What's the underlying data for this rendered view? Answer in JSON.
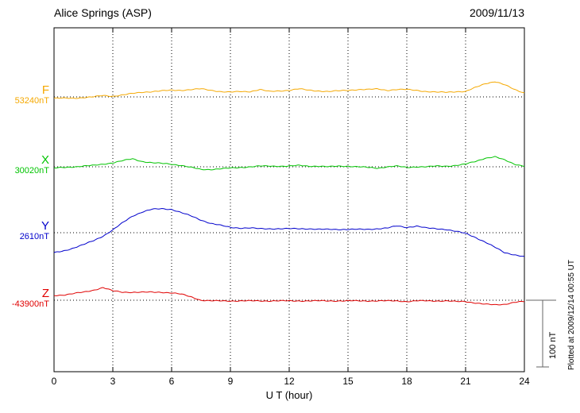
{
  "header": {
    "station": "Alice Springs (ASP)",
    "date": "2009/11/13"
  },
  "axis": {
    "xlabel": "U T (hour)",
    "tick_labels": [
      "0",
      "3",
      "6",
      "9",
      "12",
      "15",
      "18",
      "21",
      "24"
    ]
  },
  "scale_bar": {
    "label": "100 nT",
    "amount_nT": 100
  },
  "side_note": "Plotted at 2009/12/14 00:55 UT",
  "chart_data": {
    "type": "line",
    "title": "Alice Springs (ASP) magnetogram 2009/11/13",
    "xlabel": "U T (hour)",
    "x_range": [
      0,
      24
    ],
    "x_step_hours": 0.5,
    "grid": "dotted vertical lines every 3 h; dotted horizontal baseline per component",
    "legend_position": "left margin, one colored label per component",
    "y_scale": "deviation from component baseline in nT; scale bar = 100 nT",
    "series": [
      {
        "name": "F",
        "baseline_label": "53240nT",
        "baseline_nT": 53240,
        "color": "#f5a800",
        "values": [
          -2,
          -2,
          -2,
          -1,
          0,
          2,
          1,
          3,
          5,
          7,
          8,
          9,
          10,
          10,
          11,
          12,
          10,
          8,
          7,
          8,
          8,
          11,
          8,
          9,
          10,
          12,
          10,
          9,
          8,
          9,
          10,
          11,
          11,
          12,
          10,
          11,
          11,
          10,
          8,
          7,
          7,
          8,
          8,
          14,
          20,
          23,
          18,
          11,
          6
        ]
      },
      {
        "name": "X",
        "baseline_label": "30020nT",
        "baseline_nT": 30020,
        "color": "#00c400",
        "values": [
          -2,
          -1,
          0,
          1,
          2,
          4,
          6,
          9,
          12,
          8,
          6,
          5,
          4,
          2,
          -1,
          -4,
          -4,
          -3,
          -2,
          -1,
          0,
          1,
          1,
          1,
          1,
          2,
          1,
          1,
          0,
          1,
          1,
          0,
          -1,
          -2,
          0,
          1,
          -1,
          0,
          0,
          1,
          1,
          2,
          4,
          8,
          13,
          15,
          10,
          4,
          1
        ]
      },
      {
        "name": "Y",
        "baseline_label": "2610nT",
        "baseline_nT": 2610,
        "color": "#0000cc",
        "values": [
          -30,
          -27,
          -23,
          -18,
          -12,
          -5,
          4,
          15,
          25,
          31,
          35,
          36,
          35,
          30,
          25,
          19,
          14,
          11,
          8,
          7,
          7,
          6,
          6,
          6,
          6,
          6,
          6,
          5,
          5,
          5,
          5,
          5,
          5,
          6,
          7,
          10,
          8,
          10,
          7,
          6,
          5,
          2,
          -1,
          -7,
          -14,
          -22,
          -30,
          -33,
          -36
        ]
      },
      {
        "name": "Z",
        "baseline_label": "-43900nT",
        "baseline_nT": -43900,
        "color": "#e00000",
        "values": [
          7,
          8,
          10,
          12,
          15,
          19,
          14,
          12,
          12,
          12,
          12,
          12,
          11,
          9,
          5,
          0,
          -1,
          -1,
          -1,
          -1,
          -1,
          -1,
          -1,
          -1,
          -1,
          -1,
          -1,
          -1,
          -1,
          -1,
          -1,
          -1,
          -1,
          -1,
          -1,
          -1,
          -2,
          -1,
          -1,
          -1,
          -1,
          -2,
          -2,
          -4,
          -6,
          -7,
          -6,
          -3,
          -2
        ]
      }
    ]
  }
}
